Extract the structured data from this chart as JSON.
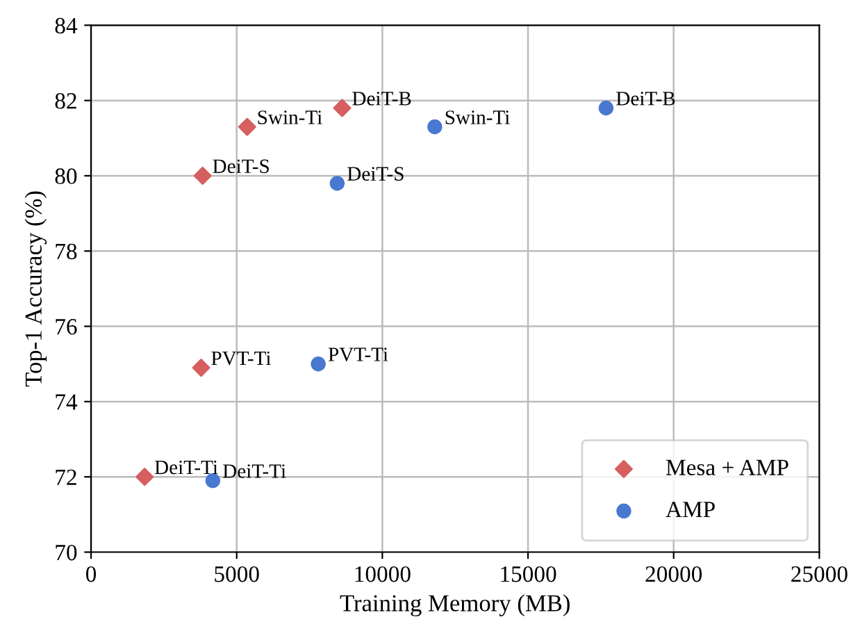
{
  "chart_data": {
    "type": "scatter",
    "xlabel": "Training Memory (MB)",
    "ylabel": "Top-1 Accuracy (%)",
    "xlim": [
      0,
      25000
    ],
    "xticks": [
      0,
      5000,
      10000,
      15000,
      20000,
      25000
    ],
    "ylim": [
      70,
      84
    ],
    "yticks": [
      70,
      72,
      74,
      76,
      78,
      80,
      82,
      84
    ],
    "grid": true,
    "legend": "bottom right",
    "series": [
      {
        "name": "Mesa + AMP",
        "color": "#d65f5f",
        "marker": "diamond",
        "x": [
          1840,
          3780,
          3830,
          5360,
          8620
        ],
        "values": [
          72.0,
          74.9,
          80.0,
          81.3,
          81.8
        ]
      },
      {
        "name": "AMP",
        "color": "#4878cf",
        "marker": "circle",
        "x": [
          4180,
          7800,
          8450,
          11800,
          17680
        ],
        "values": [
          71.9,
          75.0,
          79.8,
          81.3,
          81.8
        ]
      }
    ],
    "annotations": [
      {
        "text": "DeiT-Ti",
        "x": 1840,
        "y": 72.0
      },
      {
        "text": "PVT-Ti",
        "x": 3780,
        "y": 74.9
      },
      {
        "text": "DeiT-S",
        "x": 3830,
        "y": 80.0
      },
      {
        "text": "Swin-Ti",
        "x": 5360,
        "y": 81.3
      },
      {
        "text": "DeiT-B",
        "x": 8620,
        "y": 81.8
      },
      {
        "text": "DeiT-Ti",
        "x": 4180,
        "y": 71.9
      },
      {
        "text": "PVT-Ti",
        "x": 7800,
        "y": 75.0
      },
      {
        "text": "DeiT-S",
        "x": 8450,
        "y": 79.8
      },
      {
        "text": "Swin-Ti",
        "x": 11800,
        "y": 81.3
      },
      {
        "text": "DeiT-B",
        "x": 17680,
        "y": 81.8
      }
    ]
  }
}
